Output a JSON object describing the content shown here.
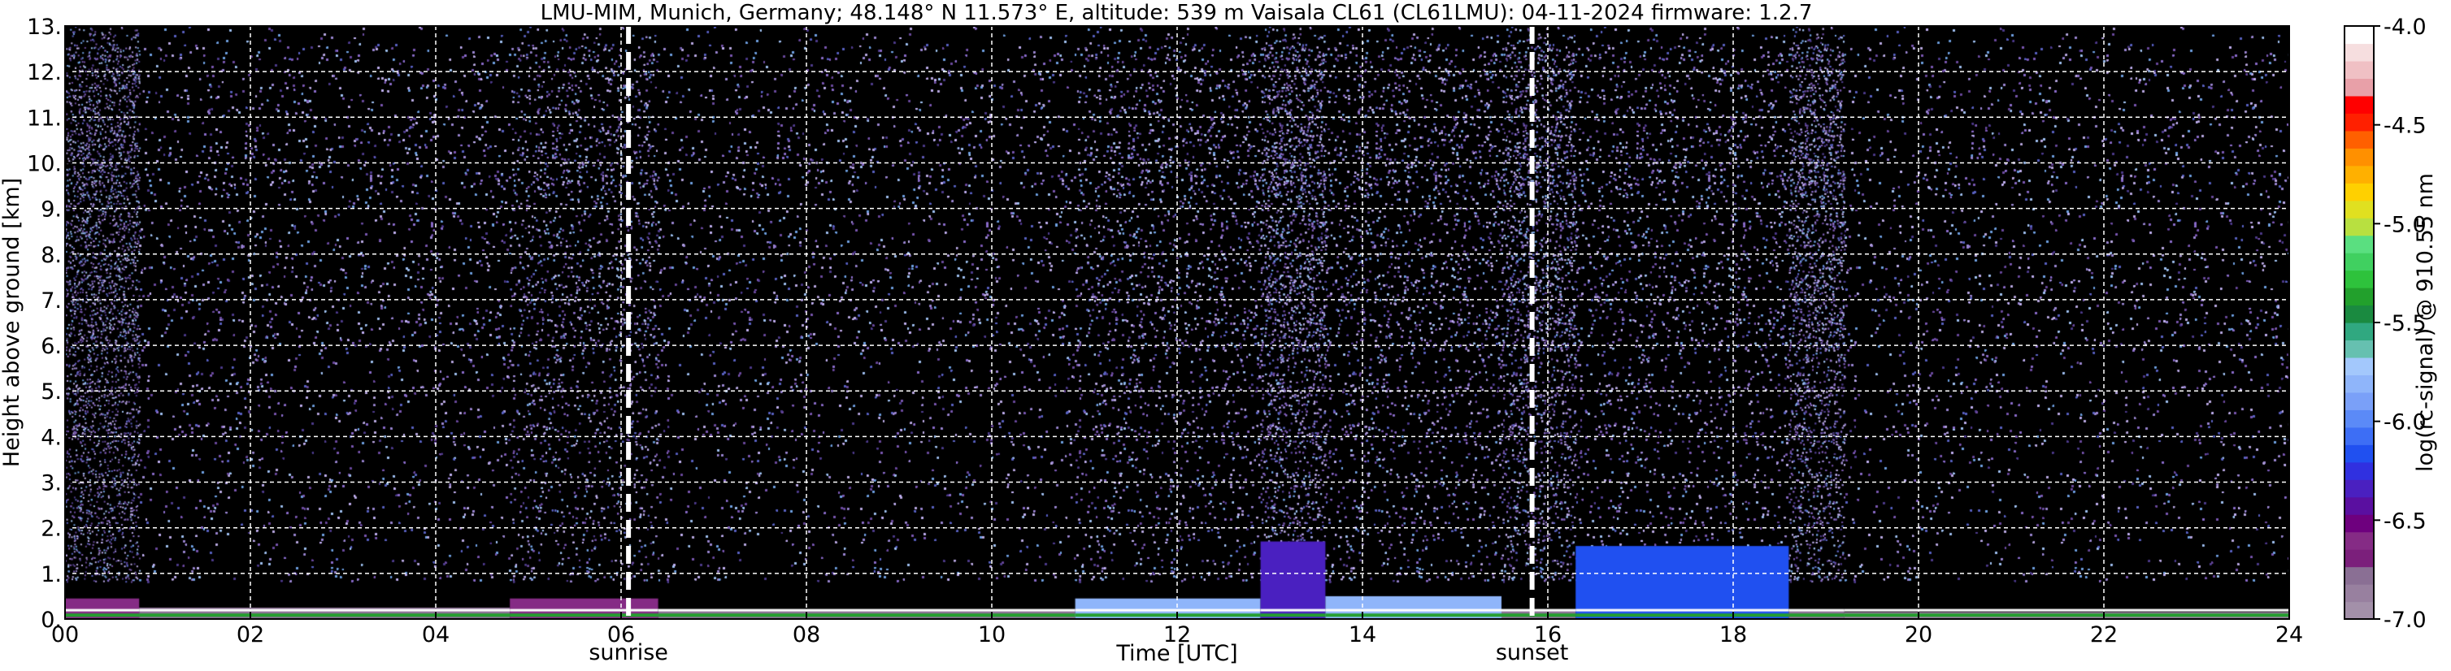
{
  "chart_data": {
    "type": "heatmap",
    "title": "LMU-MIM, Munich, Germany; 48.148° N 11.573° E, altitude: 539 m    Vaisala CL61 (CL61LMU): 04-11-2024    firmware: 1.2.7",
    "xlabel": "Time [UTC]",
    "ylabel": "Height above ground [km]",
    "colorbar_label": "log(rc-signal) @ 910.55 nm",
    "xlim": [
      0,
      24
    ],
    "ylim": [
      0,
      13
    ],
    "clim": [
      -7.0,
      -4.0
    ],
    "grid": true,
    "x_ticks": [
      {
        "value": 0,
        "label": "00"
      },
      {
        "value": 2,
        "label": "02"
      },
      {
        "value": 4,
        "label": "04"
      },
      {
        "value": 6,
        "label": "06"
      },
      {
        "value": 8,
        "label": "08"
      },
      {
        "value": 10,
        "label": "10"
      },
      {
        "value": 12,
        "label": "12"
      },
      {
        "value": 14,
        "label": "14"
      },
      {
        "value": 16,
        "label": "16"
      },
      {
        "value": 18,
        "label": "18"
      },
      {
        "value": 20,
        "label": "20"
      },
      {
        "value": 22,
        "label": "22"
      },
      {
        "value": 24,
        "label": "24"
      }
    ],
    "y_ticks": [
      {
        "value": 0,
        "label": "0."
      },
      {
        "value": 1,
        "label": "1."
      },
      {
        "value": 2,
        "label": "2."
      },
      {
        "value": 3,
        "label": "3."
      },
      {
        "value": 4,
        "label": "4."
      },
      {
        "value": 5,
        "label": "5."
      },
      {
        "value": 6,
        "label": "6."
      },
      {
        "value": 7,
        "label": "7."
      },
      {
        "value": 8,
        "label": "8."
      },
      {
        "value": 9,
        "label": "9."
      },
      {
        "value": 10,
        "label": "10."
      },
      {
        "value": 11,
        "label": "11."
      },
      {
        "value": 12,
        "label": "12."
      },
      {
        "value": 13,
        "label": "13."
      }
    ],
    "colorbar_ticks": [
      {
        "value": -4.0,
        "label": "-4.0"
      },
      {
        "value": -4.5,
        "label": "-4.5"
      },
      {
        "value": -5.0,
        "label": "-5.0"
      },
      {
        "value": -5.5,
        "label": "-5.5"
      },
      {
        "value": -6.0,
        "label": "-6.0"
      },
      {
        "value": -6.5,
        "label": "-6.5"
      },
      {
        "value": -7.0,
        "label": "-7.0"
      }
    ],
    "events": [
      {
        "name": "sunrise",
        "time": 6.08
      },
      {
        "name": "sunset",
        "time": 15.83
      }
    ],
    "colormap": [
      "#a390a9",
      "#98809f",
      "#8a6f94",
      "#7b1f7b",
      "#852b85",
      "#6e007e",
      "#5a0fa0",
      "#4a20c0",
      "#3030e0",
      "#2050f0",
      "#3d6ef5",
      "#5b8af7",
      "#7aa0f8",
      "#8fb5fa",
      "#a3c8fc",
      "#66c0b0",
      "#30a880",
      "#1a8a40",
      "#22a02c",
      "#2ec23c",
      "#40d060",
      "#5adf80",
      "#b8e040",
      "#e0e020",
      "#ffd000",
      "#ffb000",
      "#ff9000",
      "#ff6000",
      "#ff2000",
      "#ff0000",
      "#e8a0a8",
      "#f0c0c4",
      "#f6dedf",
      "#ffffff"
    ],
    "regions": [
      {
        "t0": 0.0,
        "t1": 0.8,
        "noise_density": 0.35,
        "noise_top": 13,
        "layer_top": 0.45,
        "layer_value": -6.6
      },
      {
        "t0": 0.8,
        "t1": 4.8,
        "noise_density": 0.85,
        "noise_top": 13,
        "layer_top": 0.25,
        "layer_value": -6.8
      },
      {
        "t0": 4.8,
        "t1": 6.4,
        "noise_density": 0.45,
        "noise_top": 13,
        "layer_top": 0.45,
        "layer_value": -6.6
      },
      {
        "t0": 6.4,
        "t1": 10.9,
        "noise_density": 0.75,
        "noise_top": 13,
        "layer_top": 0.2,
        "layer_value": -6.8
      },
      {
        "t0": 10.9,
        "t1": 12.9,
        "noise_density": 0.7,
        "noise_top": 13,
        "layer_top": 0.45,
        "layer_value": -5.8
      },
      {
        "t0": 12.9,
        "t1": 13.6,
        "noise_density": 0.7,
        "noise_top": 13,
        "layer_top": 1.7,
        "layer_value": -6.4
      },
      {
        "t0": 13.6,
        "t1": 15.5,
        "noise_density": 0.7,
        "noise_top": 13,
        "layer_top": 0.5,
        "layer_value": -5.8
      },
      {
        "t0": 15.5,
        "t1": 16.3,
        "noise_density": 0.65,
        "noise_top": 13,
        "layer_top": 0.2,
        "layer_value": -6.8
      },
      {
        "t0": 16.3,
        "t1": 18.6,
        "noise_density": 0.65,
        "noise_top": 13,
        "layer_top": 1.6,
        "layer_value": -6.2
      },
      {
        "t0": 18.6,
        "t1": 19.2,
        "noise_density": 0.55,
        "noise_top": 13,
        "layer_top": 0.2,
        "layer_value": -6.8
      },
      {
        "t0": 19.2,
        "t1": 24.0,
        "noise_density": 0.75,
        "noise_top": 13,
        "layer_top": 0.15,
        "layer_value": -6.9
      }
    ]
  }
}
